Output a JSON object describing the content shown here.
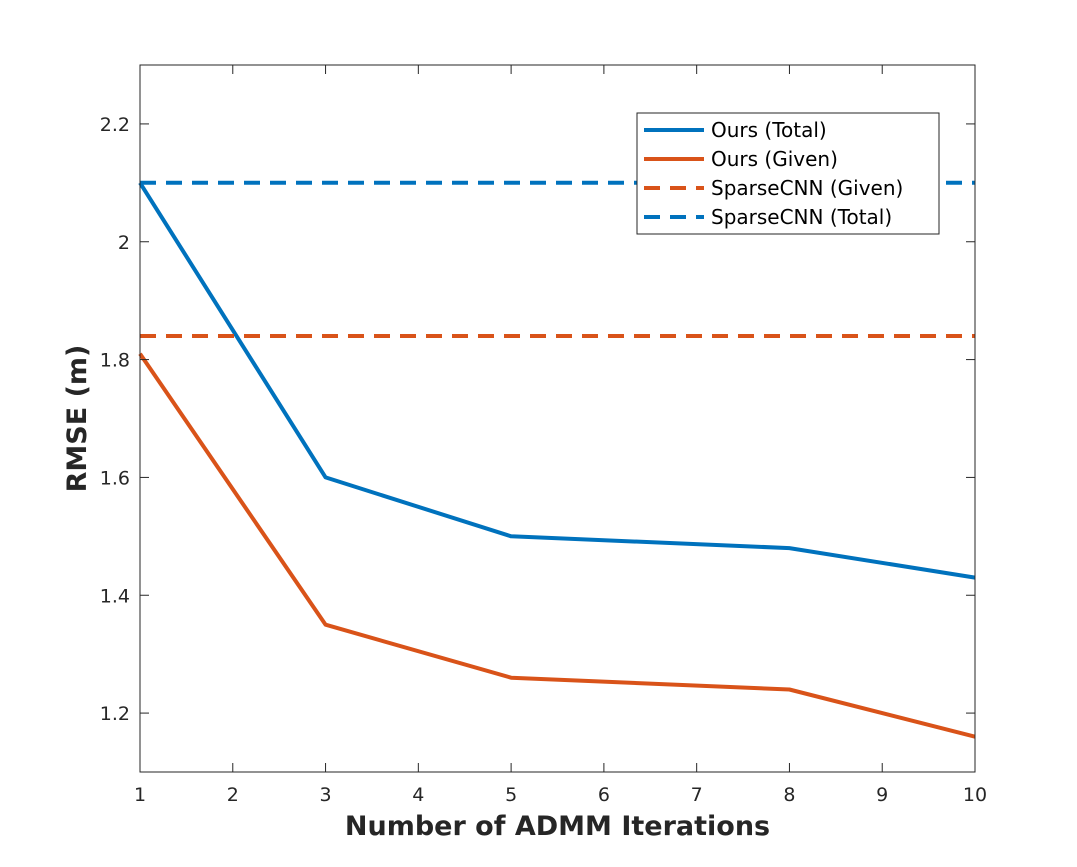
{
  "chart_data": {
    "type": "line",
    "title": "",
    "xlabel": "Number of ADMM Iterations",
    "ylabel": "RMSE (m)",
    "xlim": [
      1,
      10
    ],
    "ylim": [
      1.1,
      2.3
    ],
    "xticks": [
      1,
      2,
      3,
      4,
      5,
      6,
      7,
      8,
      9,
      10
    ],
    "yticks": [
      1.2,
      1.4,
      1.6,
      1.8,
      2.0,
      2.2
    ],
    "ytick_labels": [
      "1.2",
      "1.4",
      "1.6",
      "1.8",
      "2",
      "2.2"
    ],
    "grid": false,
    "legend_position": "top-right",
    "series": [
      {
        "name": "Ours (Total)",
        "style": "solid",
        "color": "#0072BD",
        "x": [
          1,
          3,
          5,
          8,
          10
        ],
        "values": [
          2.1,
          1.6,
          1.5,
          1.48,
          1.43
        ]
      },
      {
        "name": "Ours (Given)",
        "style": "solid",
        "color": "#D95319",
        "x": [
          1,
          3,
          5,
          8,
          10
        ],
        "values": [
          1.81,
          1.35,
          1.26,
          1.24,
          1.16
        ]
      },
      {
        "name": "SparseCNN (Given)",
        "style": "dashed",
        "color": "#D95319",
        "x": [
          1,
          10
        ],
        "values": [
          1.84,
          1.84
        ]
      },
      {
        "name": "SparseCNN (Total)",
        "style": "dashed",
        "color": "#0072BD",
        "x": [
          1,
          10
        ],
        "values": [
          2.1,
          2.1
        ]
      }
    ]
  }
}
